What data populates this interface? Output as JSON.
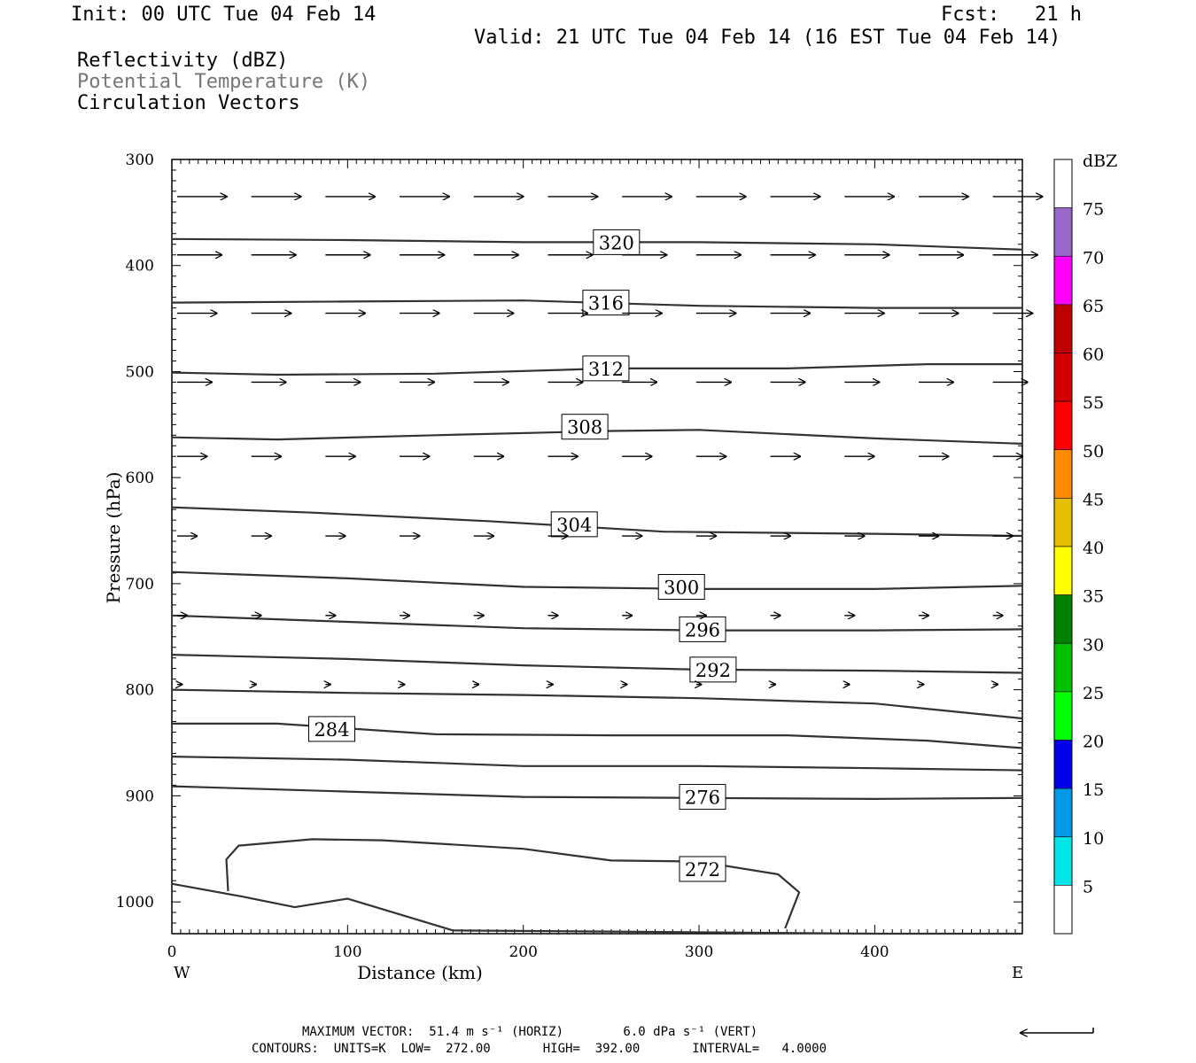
{
  "header": {
    "init": "Init: 00 UTC Tue 04 Feb 14",
    "fcst": "Fcst:   21 h",
    "valid": "Valid: 21 UTC Tue 04 Feb 14 (16 EST Tue 04 Feb 14)",
    "line1": "Reflectivity (dBZ)",
    "line2": "Potential Temperature (K)",
    "line3": "Circulation Vectors"
  },
  "footer": {
    "max_vector": "MAXIMUM VECTOR:  51.4 m s⁻¹ (HORIZ)        6.0 dPa s⁻¹ (VERT)",
    "contours": "CONTOURS:  UNITS=K  LOW=  272.00       HIGH=  392.00       INTERVAL=   4.0000"
  },
  "colors": {
    "line": "#000000",
    "contour": "#333333",
    "subtitle": "#777777"
  },
  "chart_data": {
    "type": "cross-section",
    "xlabel": "Distance (km)",
    "ylabel": "Pressure (hPa)",
    "xlim": [
      0,
      484
    ],
    "ylim": [
      1030,
      300
    ],
    "x_ticks": [
      0,
      100,
      200,
      300,
      400
    ],
    "y_ticks": [
      300,
      400,
      500,
      600,
      700,
      800,
      900,
      1000
    ],
    "x_end_labels": {
      "left": "W",
      "right": "E"
    },
    "colorbar": {
      "unit_label": "dBZ",
      "tick_labels": [
        "5",
        "10",
        "15",
        "20",
        "25",
        "30",
        "35",
        "40",
        "45",
        "50",
        "55",
        "60",
        "65",
        "70",
        "75"
      ],
      "bands": [
        {
          "from": 0,
          "to": 5,
          "color": "#ffffff"
        },
        {
          "from": 5,
          "to": 10,
          "color": "#00e5e5"
        },
        {
          "from": 10,
          "to": 15,
          "color": "#0099e6"
        },
        {
          "from": 15,
          "to": 20,
          "color": "#0000e6"
        },
        {
          "from": 20,
          "to": 25,
          "color": "#00ff00"
        },
        {
          "from": 25,
          "to": 30,
          "color": "#00c000"
        },
        {
          "from": 30,
          "to": 35,
          "color": "#008000"
        },
        {
          "from": 35,
          "to": 40,
          "color": "#ffff00"
        },
        {
          "from": 40,
          "to": 45,
          "color": "#e6bf00"
        },
        {
          "from": 45,
          "to": 50,
          "color": "#ff8c00"
        },
        {
          "from": 50,
          "to": 55,
          "color": "#ff0000"
        },
        {
          "from": 55,
          "to": 60,
          "color": "#d40000"
        },
        {
          "from": 60,
          "to": 65,
          "color": "#bf0000"
        },
        {
          "from": 65,
          "to": 70,
          "color": "#ff00ff"
        },
        {
          "from": 70,
          "to": 75,
          "color": "#9966cc"
        },
        {
          "from": 75,
          "to": 80,
          "color": "#ffffff"
        }
      ]
    },
    "contours": [
      {
        "value": "320",
        "label": "320",
        "label_at": [
          253,
          378
        ],
        "points": [
          [
            0,
            375
          ],
          [
            100,
            376
          ],
          [
            200,
            378
          ],
          [
            300,
            378
          ],
          [
            400,
            380
          ],
          [
            484,
            385
          ]
        ]
      },
      {
        "value": "316",
        "label": "316",
        "label_at": [
          247,
          435
        ],
        "points": [
          [
            0,
            435
          ],
          [
            100,
            434
          ],
          [
            200,
            433
          ],
          [
            300,
            438
          ],
          [
            400,
            440
          ],
          [
            484,
            440
          ]
        ]
      },
      {
        "value": "312",
        "label": "312",
        "label_at": [
          247,
          497
        ],
        "points": [
          [
            0,
            501
          ],
          [
            60,
            503
          ],
          [
            150,
            502
          ],
          [
            250,
            497
          ],
          [
            350,
            497
          ],
          [
            430,
            493
          ],
          [
            484,
            493
          ]
        ]
      },
      {
        "value": "308",
        "label": "308",
        "label_at": [
          235,
          552
        ],
        "points": [
          [
            0,
            562
          ],
          [
            60,
            564
          ],
          [
            150,
            560
          ],
          [
            250,
            556
          ],
          [
            300,
            555
          ],
          [
            400,
            563
          ],
          [
            484,
            568
          ]
        ]
      },
      {
        "value": "304",
        "label": "304",
        "label_at": [
          229,
          644
        ],
        "points": [
          [
            0,
            628
          ],
          [
            80,
            633
          ],
          [
            180,
            641
          ],
          [
            280,
            651
          ],
          [
            400,
            653
          ],
          [
            484,
            655
          ]
        ]
      },
      {
        "value": "300",
        "label": "300",
        "label_at": [
          290,
          703
        ],
        "points": [
          [
            0,
            689
          ],
          [
            100,
            695
          ],
          [
            200,
            703
          ],
          [
            300,
            705
          ],
          [
            400,
            705
          ],
          [
            484,
            702
          ]
        ]
      },
      {
        "value": "296",
        "label": "296",
        "label_at": [
          302,
          743
        ],
        "points": [
          [
            0,
            730
          ],
          [
            100,
            736
          ],
          [
            200,
            742
          ],
          [
            300,
            744
          ],
          [
            400,
            744
          ],
          [
            484,
            743
          ]
        ]
      },
      {
        "value": "292",
        "label": "292",
        "label_at": [
          308,
          781
        ],
        "points": [
          [
            0,
            767
          ],
          [
            100,
            771
          ],
          [
            200,
            777
          ],
          [
            300,
            781
          ],
          [
            400,
            782
          ],
          [
            484,
            784
          ]
        ]
      },
      {
        "value": "288",
        "label": "",
        "label_at": null,
        "points": [
          [
            0,
            800
          ],
          [
            100,
            803
          ],
          [
            200,
            805
          ],
          [
            300,
            808
          ],
          [
            400,
            813
          ],
          [
            484,
            827
          ]
        ]
      },
      {
        "value": "284",
        "label": "284",
        "label_at": [
          91,
          837
        ],
        "points": [
          [
            0,
            832
          ],
          [
            60,
            832
          ],
          [
            150,
            842
          ],
          [
            250,
            843
          ],
          [
            350,
            843
          ],
          [
            430,
            848
          ],
          [
            484,
            855
          ]
        ]
      },
      {
        "value": "280",
        "label": "",
        "label_at": null,
        "points": [
          [
            0,
            863
          ],
          [
            100,
            866
          ],
          [
            200,
            872
          ],
          [
            300,
            872
          ],
          [
            400,
            874
          ],
          [
            484,
            876
          ]
        ]
      },
      {
        "value": "276",
        "label": "276",
        "label_at": [
          302,
          901
        ],
        "points": [
          [
            0,
            891
          ],
          [
            100,
            896
          ],
          [
            200,
            901
          ],
          [
            300,
            902
          ],
          [
            400,
            903
          ],
          [
            484,
            902
          ]
        ]
      },
      {
        "value": "272",
        "label": "272",
        "label_at": [
          302,
          969
        ],
        "points": [
          [
            32,
            990
          ],
          [
            31,
            960
          ],
          [
            38,
            947
          ],
          [
            80,
            941
          ],
          [
            120,
            942
          ],
          [
            200,
            950
          ],
          [
            250,
            961
          ],
          [
            300,
            962
          ],
          [
            345,
            974
          ],
          [
            357,
            991
          ],
          [
            349,
            1025
          ]
        ]
      },
      {
        "value": "",
        "label": "",
        "label_at": null,
        "points": [
          [
            0,
            983
          ],
          [
            40,
            995
          ],
          [
            70,
            1005
          ],
          [
            100,
            997
          ],
          [
            130,
            1012
          ],
          [
            160,
            1027
          ],
          [
            250,
            1028
          ],
          [
            400,
            1030
          ],
          [
            484,
            1030
          ]
        ]
      }
    ],
    "vectors": [
      {
        "p": 335,
        "u": [
          10,
          10,
          10,
          10,
          10,
          10,
          10,
          10,
          10,
          10,
          10,
          10
        ],
        "w": [
          0,
          0,
          0,
          0,
          0,
          0,
          0,
          0,
          0,
          0,
          0,
          0
        ]
      },
      {
        "p": 390,
        "u": [
          9,
          9,
          9,
          9,
          9,
          9,
          9,
          9,
          9,
          9,
          9,
          9
        ],
        "w": [
          0,
          0,
          0,
          0,
          0,
          0,
          0,
          0,
          0,
          0,
          0,
          0
        ]
      },
      {
        "p": 445,
        "u": [
          8,
          8,
          8,
          8,
          8,
          8,
          8,
          8,
          8,
          8,
          8,
          8
        ],
        "w": [
          0,
          0,
          0,
          0,
          0,
          0,
          0,
          0,
          0,
          0,
          0,
          0
        ]
      },
      {
        "p": 510,
        "u": [
          7,
          7,
          7,
          7,
          7,
          7,
          7,
          7,
          7,
          7,
          7,
          7
        ],
        "w": [
          0,
          0,
          0,
          0,
          0,
          0,
          0,
          0,
          0,
          0,
          0,
          0
        ]
      },
      {
        "p": 580,
        "u": [
          6,
          6,
          6,
          6,
          6,
          6,
          6,
          6,
          6,
          6,
          6,
          6
        ],
        "w": [
          0,
          0,
          0,
          0,
          0,
          0,
          0,
          0,
          0,
          0,
          0,
          0
        ]
      },
      {
        "p": 655,
        "u": [
          4,
          4,
          4,
          4,
          4,
          4,
          4,
          4,
          4,
          4,
          4,
          4
        ],
        "w": [
          0,
          0,
          0,
          0,
          0,
          0,
          0,
          0,
          0,
          0,
          0,
          0
        ]
      },
      {
        "p": 730,
        "u": [
          2,
          2,
          2,
          2,
          2,
          2,
          2,
          2,
          2,
          2,
          2,
          2
        ],
        "w": [
          0,
          0,
          0,
          0,
          0,
          0,
          0,
          0,
          0,
          0,
          0,
          0
        ]
      },
      {
        "p": 795,
        "u": [
          1,
          1,
          1,
          1,
          1,
          1,
          1,
          1,
          1,
          1,
          1,
          1
        ],
        "w": [
          0,
          0,
          0,
          0,
          0,
          0,
          0,
          0,
          0,
          0,
          0,
          0
        ]
      }
    ]
  }
}
